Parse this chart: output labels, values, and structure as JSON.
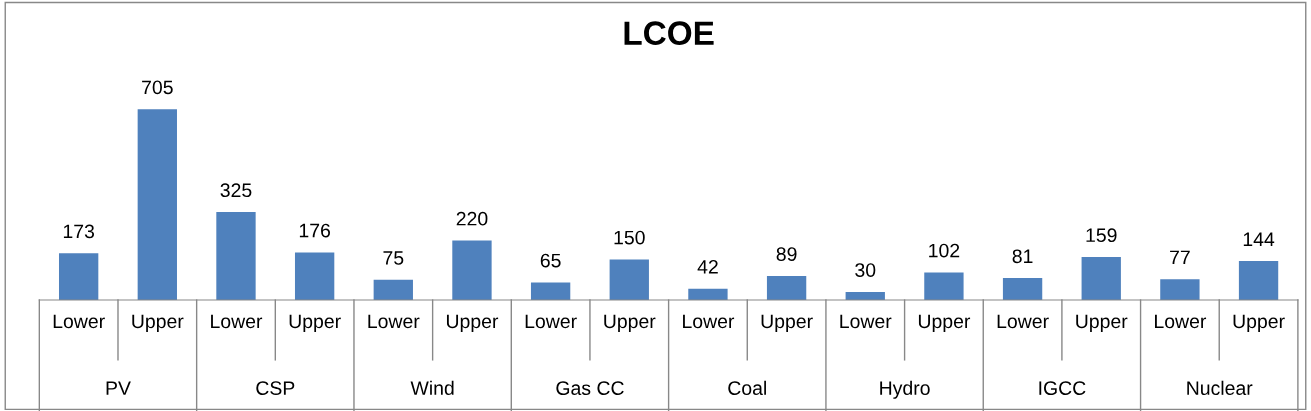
{
  "chart_data": {
    "type": "bar",
    "title": "LCOE",
    "categories": [
      "Lower",
      "Upper",
      "Lower",
      "Upper",
      "Lower",
      "Upper",
      "Lower",
      "Upper",
      "Lower",
      "Upper",
      "Lower",
      "Upper",
      "Lower",
      "Upper",
      "Lower",
      "Upper"
    ],
    "values": [
      173,
      705,
      325,
      176,
      75,
      220,
      65,
      150,
      42,
      89,
      30,
      102,
      81,
      159,
      77,
      144
    ],
    "color": "#4f81bd",
    "data_labels": true,
    "grid": false,
    "legend": false,
    "annotations": [
      "PV",
      "CSP",
      "Wind",
      "Gas CC",
      "Coal",
      "Hydro",
      "IGCC",
      "Nuclear"
    ]
  }
}
